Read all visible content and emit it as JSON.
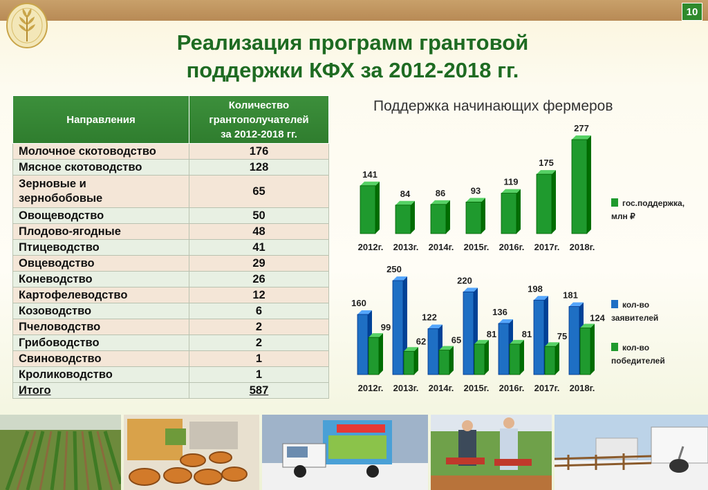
{
  "header": {
    "page_number": "10"
  },
  "title": {
    "line1": "Реализация программ грантовой",
    "line2": "поддержки КФХ за 2012-2018 гг."
  },
  "table": {
    "col1_header": "Направления",
    "col2_header_lines": [
      "Количество",
      "грантополучателей",
      "за 2012-2018 гг."
    ],
    "rows": [
      {
        "label_lines": [
          "Молочное скотоводство"
        ],
        "value": "176"
      },
      {
        "label_lines": [
          "Мясное скотоводство"
        ],
        "value": "128"
      },
      {
        "label_lines": [
          "Зерновые и",
          "зернобобовые"
        ],
        "value": "65"
      },
      {
        "label_lines": [
          "Овощеводство"
        ],
        "value": "50"
      },
      {
        "label_lines": [
          "Плодово-ягодные"
        ],
        "value": "48"
      },
      {
        "label_lines": [
          "Птицеводство"
        ],
        "value": "41"
      },
      {
        "label_lines": [
          "Овцеводство"
        ],
        "value": "29"
      },
      {
        "label_lines": [
          "Коневодство"
        ],
        "value": "26"
      },
      {
        "label_lines": [
          "Картофелеводство"
        ],
        "value": "12"
      },
      {
        "label_lines": [
          "Козоводство"
        ],
        "value": "6"
      },
      {
        "label_lines": [
          "Пчеловодство"
        ],
        "value": "2"
      },
      {
        "label_lines": [
          "Грибоводство"
        ],
        "value": "2"
      },
      {
        "label_lines": [
          "Свиноводство"
        ],
        "value": "1"
      },
      {
        "label_lines": [
          "Кролиководство"
        ],
        "value": "1"
      }
    ],
    "total": {
      "label": "Итого",
      "value": "587"
    }
  },
  "chart_heading": "Поддержка начинающих фермеров",
  "colors": {
    "green": "#1f9a2e",
    "blue": "#1e6fc4",
    "title_green": "#1e6b22"
  },
  "chart_data": [
    {
      "type": "bar",
      "categories": [
        "2012г.",
        "2013г.",
        "2014г.",
        "2015г.",
        "2016г.",
        "2017г.",
        "2018г."
      ],
      "series": [
        {
          "name": "гос.поддержка, млн ₽",
          "values": [
            141,
            84,
            86,
            93,
            119,
            175,
            277
          ]
        }
      ],
      "legend_lines": [
        "гос.поддержка,",
        "млн ₽"
      ],
      "legend_position": "right"
    },
    {
      "type": "bar",
      "categories": [
        "2012г.",
        "2013г.",
        "2014г.",
        "2015г.",
        "2016г.",
        "2017г.",
        "2018г."
      ],
      "series": [
        {
          "name": "кол-во заявителей",
          "values": [
            160,
            250,
            122,
            220,
            136,
            198,
            181
          ]
        },
        {
          "name": "кол-во победителей",
          "values": [
            99,
            62,
            65,
            81,
            81,
            75,
            124
          ]
        }
      ],
      "legend": [
        {
          "lines": [
            "кол-во",
            "заявителей"
          ],
          "color": "blue"
        },
        {
          "lines": [
            "кол-во",
            "победителей"
          ],
          "color": "green"
        }
      ],
      "legend_position": "right"
    }
  ],
  "photos": [
    {
      "icon": "seedling-field-photo"
    },
    {
      "icon": "honey-jars-photo"
    },
    {
      "icon": "livestock-truck-photo"
    },
    {
      "icon": "strawberry-farmers-photo"
    },
    {
      "icon": "ostrich-farm-photo"
    }
  ]
}
